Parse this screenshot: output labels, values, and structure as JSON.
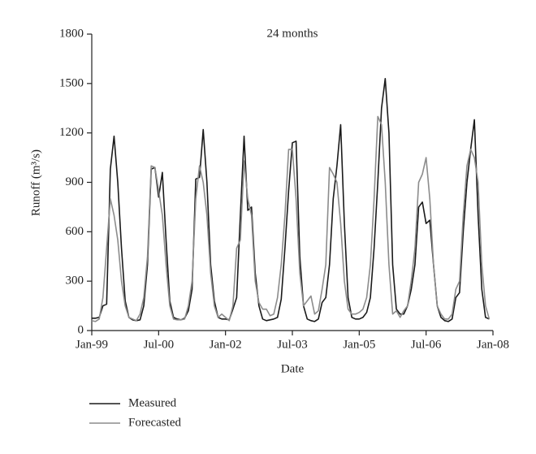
{
  "chart_data": {
    "type": "line",
    "annotation": "24 months",
    "xlabel": "Date",
    "ylabel": "Runoff (m³/s)",
    "categories": [
      "Jan-99",
      null,
      null,
      null,
      null,
      null,
      null,
      null,
      null,
      null,
      null,
      null,
      null,
      null,
      null,
      null,
      null,
      null,
      "Jul-00",
      null,
      null,
      null,
      null,
      null,
      null,
      null,
      null,
      null,
      null,
      null,
      null,
      null,
      null,
      null,
      null,
      null,
      "Jan-02",
      null,
      null,
      null,
      null,
      null,
      null,
      null,
      null,
      null,
      null,
      null,
      null,
      null,
      null,
      null,
      null,
      null,
      "Jul-03",
      null,
      null,
      null,
      null,
      null,
      null,
      null,
      null,
      null,
      null,
      null,
      null,
      null,
      null,
      null,
      null,
      null,
      "Jan-05",
      null,
      null,
      null,
      null,
      null,
      null,
      null,
      null,
      null,
      null,
      null,
      null,
      null,
      null,
      null,
      null,
      null,
      "Jul-06",
      null,
      null,
      null,
      null,
      null,
      null,
      null,
      null,
      null,
      null,
      null,
      null,
      null,
      null,
      null,
      null,
      null,
      "Jan-08"
    ],
    "series": [
      {
        "name": "Measured",
        "color": "#1a1a1a",
        "values": [
          75,
          75,
          80,
          150,
          160,
          980,
          1180,
          900,
          500,
          180,
          80,
          65,
          60,
          65,
          150,
          400,
          980,
          990,
          810,
          960,
          550,
          180,
          80,
          70,
          65,
          75,
          120,
          250,
          920,
          930,
          1220,
          900,
          400,
          180,
          80,
          70,
          70,
          65,
          130,
          200,
          700,
          1180,
          730,
          750,
          350,
          150,
          70,
          60,
          65,
          70,
          80,
          190,
          500,
          850,
          1140,
          1150,
          450,
          150,
          70,
          60,
          55,
          70,
          170,
          200,
          400,
          800,
          1000,
          1250,
          650,
          200,
          80,
          70,
          70,
          80,
          110,
          200,
          500,
          900,
          1350,
          1530,
          1200,
          400,
          130,
          100,
          100,
          150,
          250,
          400,
          750,
          780,
          650,
          670,
          400,
          150,
          80,
          60,
          55,
          70,
          200,
          230,
          600,
          900,
          1100,
          1280,
          700,
          250,
          80,
          70,
          null
        ]
      },
      {
        "name": "Forecasted",
        "color": "#8c8c8c",
        "values": [
          60,
          55,
          70,
          200,
          500,
          800,
          700,
          550,
          300,
          150,
          80,
          70,
          60,
          100,
          200,
          450,
          1000,
          990,
          850,
          700,
          400,
          150,
          70,
          65,
          65,
          70,
          150,
          300,
          800,
          1000,
          900,
          700,
          350,
          150,
          80,
          100,
          80,
          60,
          150,
          500,
          550,
          1030,
          800,
          700,
          300,
          170,
          130,
          130,
          90,
          100,
          200,
          400,
          700,
          1100,
          1100,
          800,
          350,
          150,
          180,
          210,
          100,
          120,
          250,
          400,
          990,
          950,
          900,
          650,
          300,
          130,
          100,
          100,
          110,
          130,
          200,
          400,
          800,
          1300,
          1250,
          900,
          400,
          100,
          120,
          80,
          120,
          150,
          300,
          500,
          900,
          950,
          1050,
          800,
          400,
          150,
          100,
          70,
          70,
          100,
          250,
          300,
          700,
          1000,
          1100,
          1050,
          900,
          400,
          150,
          70,
          null
        ]
      }
    ],
    "ylim": [
      0,
      1800
    ],
    "yticks": [
      0,
      300,
      600,
      900,
      1200,
      1500,
      1800
    ]
  }
}
